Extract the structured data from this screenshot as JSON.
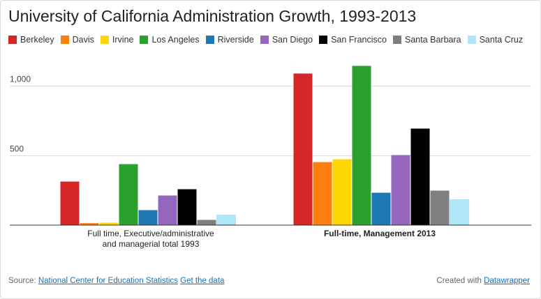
{
  "chart_data": {
    "type": "bar",
    "title": "University of California Administration Growth, 1993-2013",
    "categories": [
      "Full time, Executive/administrative and managerial total 1993",
      "Full-time, Management 2013"
    ],
    "category_lines": [
      [
        "Full time, Executive/administrative",
        "and managerial total 1993"
      ],
      [
        "Full-time, Management 2013"
      ]
    ],
    "category_bold": [
      false,
      true
    ],
    "series": [
      {
        "name": "Berkeley",
        "color": "#d62728",
        "values": [
          310,
          1085
        ]
      },
      {
        "name": "Davis",
        "color": "#ff7f0e",
        "values": [
          12,
          450
        ]
      },
      {
        "name": "Irvine",
        "color": "#ffd700",
        "values": [
          15,
          470
        ]
      },
      {
        "name": "Los Angeles",
        "color": "#2ca02c",
        "values": [
          435,
          1140
        ]
      },
      {
        "name": "Riverside",
        "color": "#1f77b4",
        "values": [
          105,
          230
        ]
      },
      {
        "name": "San Diego",
        "color": "#9467bd",
        "values": [
          210,
          500
        ]
      },
      {
        "name": "San Francisco",
        "color": "#000000",
        "values": [
          255,
          690
        ]
      },
      {
        "name": "Santa Barbara",
        "color": "#7f7f7f",
        "values": [
          35,
          245
        ]
      },
      {
        "name": "Santa Cruz",
        "color": "#aee7f8",
        "values": [
          70,
          180
        ]
      }
    ],
    "yticks": [
      {
        "value": 500,
        "label": "500"
      },
      {
        "value": 1000,
        "label": "1,000"
      }
    ],
    "ylim": [
      0,
      1250
    ],
    "xlabel": "",
    "ylabel": ""
  },
  "footer": {
    "source_label": "Source:",
    "source_link": "National Center for Education Statistics",
    "data_link": "Get the data",
    "created_label": "Created with",
    "created_link": "Datawrapper"
  }
}
